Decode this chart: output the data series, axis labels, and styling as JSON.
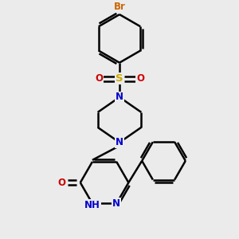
{
  "background_color": "#ebebeb",
  "bond_color": "#000000",
  "N_color": "#0000cc",
  "O_color": "#cc0000",
  "S_color": "#ccaa00",
  "Br_color": "#cc6600",
  "line_width": 1.8,
  "font_size_atom": 8.5,
  "fig_width": 3.0,
  "fig_height": 3.0,
  "dpi": 100,
  "xlim": [
    -2.8,
    2.8
  ],
  "ylim": [
    -3.2,
    3.8
  ]
}
